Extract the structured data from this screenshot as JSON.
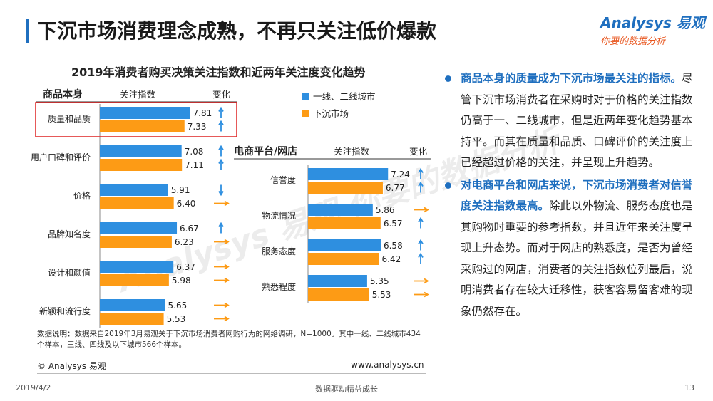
{
  "header": {
    "title": "下沉市场消费理念成熟，不再只关注低价爆款",
    "logo_main": "Analysys 易观",
    "logo_sub": "你要的数据分析"
  },
  "watermark": "Analysys 易观 你要的数据分析",
  "chart_data": {
    "type": "bar",
    "title": "2019年消费者购买决策关注指数和近两年关注度变化趋势",
    "legend": [
      "一线、二线城市",
      "下沉市场"
    ],
    "legend_position": "top-center",
    "colors": {
      "tier12": "#2e8fe0",
      "lower": "#fd9b15",
      "up_arrow": "#2e8fe0",
      "down_arrow": "#2e8fe0",
      "flat_arrow": "#fd9b15",
      "highlight_box": "#e03030"
    },
    "panels": [
      {
        "header": "商品本身",
        "value_header": "关注指数",
        "change_header": "变化",
        "categories": [
          "质量和品质",
          "用户口碑和评价",
          "价格",
          "品牌知名度",
          "设计和颜值",
          "新颖和流行度"
        ],
        "series": [
          {
            "name": "一线、二线城市",
            "values": [
              7.81,
              7.08,
              5.91,
              6.67,
              6.37,
              5.65
            ],
            "changes": [
              "up",
              "up",
              "down",
              "up",
              "flat",
              "flat"
            ]
          },
          {
            "name": "下沉市场",
            "values": [
              7.33,
              7.11,
              6.4,
              6.23,
              5.98,
              5.53
            ],
            "changes": [
              "up",
              "up",
              "flat",
              "flat",
              "flat",
              "flat"
            ]
          }
        ],
        "labels": {
          "tier12": [
            "7.81",
            "7.08",
            "5.91",
            "6.67",
            "6.37",
            "5.65"
          ],
          "lower": [
            "7.33",
            "7.11",
            "6.40",
            "6.23",
            "5.98",
            "5.53"
          ]
        },
        "highlighted_category": "质量和品质"
      },
      {
        "header": "电商平台/网店",
        "value_header": "关注指数",
        "change_header": "变化",
        "categories": [
          "信誉度",
          "物流情况",
          "服务态度",
          "熟悉程度"
        ],
        "series": [
          {
            "name": "一线、二线城市",
            "values": [
              7.24,
              5.86,
              6.58,
              5.35
            ],
            "changes": [
              "up",
              "flat",
              "up",
              "flat"
            ]
          },
          {
            "name": "下沉市场",
            "values": [
              6.77,
              6.57,
              6.42,
              5.53
            ],
            "changes": [
              "up",
              "up",
              "up",
              "flat"
            ]
          }
        ],
        "labels": {
          "tier12": [
            "7.24",
            "5.86",
            "6.58",
            "5.35"
          ],
          "lower": [
            "6.77",
            "6.57",
            "6.42",
            "5.53"
          ]
        }
      }
    ]
  },
  "data_note": "数据说明：数据来自2019年3月易观关于下沉市场消费者网购行为的网络调研，N=1000。其中一线、二线城市434个样本，三线、四线及以下城市566个样本。",
  "copyright": "© Analysys 易观",
  "website": "www.analysys.cn",
  "insights": [
    {
      "highlight": "商品本身的质量成为下沉市场最关注的指标。",
      "text": "尽管下沉市场消费者在采购时对于价格的关注指数仍高于一、二线城市，但是近两年变化趋势基本持平。而其在质量和品质、口碑评价的关注度上已经超过价格的关注，并呈现上升趋势。"
    },
    {
      "highlight": "对电商平台和网店来说，下沉市场消费者对信誉度关注指数最高。",
      "text": "除此以外物流、服务态度也是其购物时重要的参考指数，并且近年来关注度呈现上升态势。而对于网店的熟悉度，是否为曾经采购过的网店，消费者的关注指数位列最后，说明消费者存在较大迁移性，获客容易留客难的现象仍然存在。"
    }
  ],
  "footer": {
    "date": "2019/4/2",
    "center": "数据驱动精益成长",
    "page": "13"
  }
}
